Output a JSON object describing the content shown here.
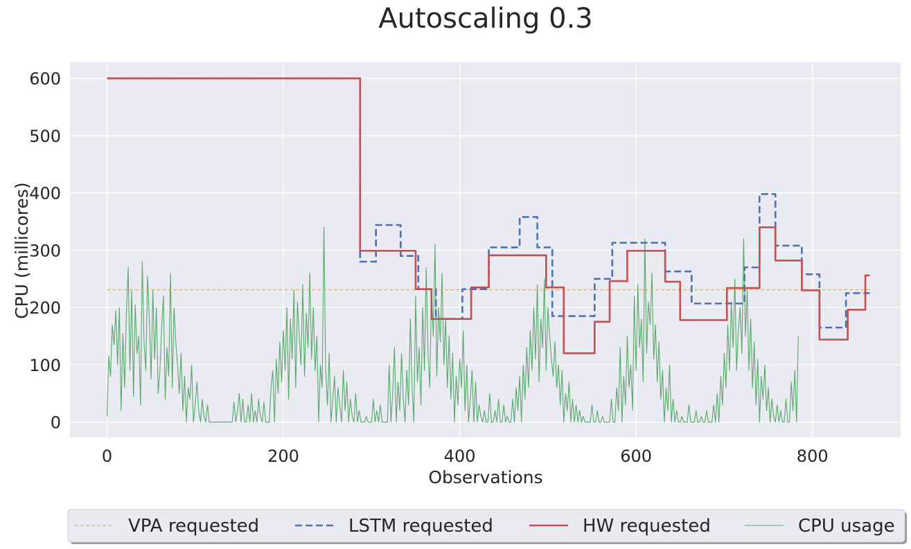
{
  "chart_data": {
    "type": "line",
    "title": "Autoscaling 0.3",
    "xlabel": "Observations",
    "ylabel": "CPU (millicores)",
    "xlim": [
      -42,
      900
    ],
    "ylim": [
      -27,
      628
    ],
    "xticks": [
      0,
      200,
      400,
      600,
      800
    ],
    "yticks": [
      0,
      100,
      200,
      300,
      400,
      500,
      600
    ],
    "grid": true,
    "background": "#eaeaf2",
    "legend_position": "bottom-center, below plot",
    "series": [
      {
        "name": "VPA requested",
        "color": "#ccb974",
        "style": "dashed-thin",
        "x": [
          0,
          865
        ],
        "y": [
          231,
          231
        ]
      },
      {
        "name": "LSTM requested",
        "color": "#4c72b0",
        "style": "dashed",
        "x": [
          0,
          287,
          287,
          305,
          305,
          333,
          333,
          353,
          353,
          373,
          373,
          403,
          403,
          433,
          433,
          468,
          468,
          488,
          488,
          505,
          505,
          553,
          553,
          573,
          573,
          633,
          633,
          663,
          663,
          723,
          723,
          740,
          740,
          758,
          758,
          788,
          788,
          808,
          808,
          838,
          838,
          865
        ],
        "y": [
          600,
          600,
          280,
          280,
          344,
          344,
          290,
          290,
          232,
          232,
          180,
          180,
          232,
          232,
          305,
          305,
          358,
          358,
          305,
          305,
          185,
          185,
          250,
          250,
          313,
          313,
          263,
          263,
          207,
          207,
          270,
          270,
          398,
          398,
          308,
          308,
          258,
          258,
          165,
          165,
          225,
          225
        ]
      },
      {
        "name": "HW requested",
        "color": "#c44e52",
        "style": "solid",
        "x": [
          0,
          287,
          287,
          350,
          350,
          368,
          368,
          413,
          413,
          433,
          433,
          498,
          498,
          518,
          518,
          553,
          553,
          570,
          570,
          590,
          590,
          633,
          633,
          650,
          650,
          703,
          703,
          740,
          740,
          758,
          758,
          788,
          788,
          808,
          808,
          840,
          840,
          860,
          860,
          865
        ],
        "y": [
          600,
          600,
          299,
          299,
          232,
          232,
          180,
          180,
          235,
          235,
          291,
          291,
          235,
          235,
          120,
          120,
          175,
          175,
          246,
          246,
          299,
          299,
          245,
          245,
          178,
          178,
          234,
          234,
          340,
          340,
          282,
          282,
          230,
          230,
          144,
          144,
          196,
          196,
          256,
          256
        ]
      },
      {
        "name": "CPU usage",
        "color": "#55a868",
        "style": "solid-thin",
        "x_start": 0,
        "x_step": 2,
        "y": [
          10,
          115,
          80,
          170,
          135,
          195,
          100,
          200,
          20,
          155,
          60,
          190,
          270,
          90,
          230,
          45,
          205,
          120,
          150,
          30,
          280,
          140,
          90,
          255,
          180,
          75,
          230,
          110,
          200,
          50,
          90,
          165,
          220,
          40,
          130,
          80,
          260,
          60,
          200,
          140,
          100,
          50,
          120,
          20,
          80,
          0,
          60,
          40,
          100,
          0,
          30,
          70,
          20,
          0,
          40,
          10,
          0,
          30,
          0,
          0,
          0,
          0,
          0,
          0,
          0,
          0,
          0,
          0,
          0,
          0,
          0,
          0,
          35,
          0,
          20,
          50,
          0,
          40,
          0,
          0,
          30,
          0,
          50,
          0,
          20,
          0,
          40,
          10,
          0,
          35,
          0,
          0,
          0,
          60,
          90,
          0,
          110,
          50,
          140,
          70,
          160,
          90,
          200,
          40,
          180,
          110,
          230,
          60,
          210,
          150,
          100,
          240,
          80,
          190,
          130,
          260,
          110,
          200,
          90,
          150,
          0,
          100,
          60,
          340,
          90,
          30,
          120,
          0,
          40,
          80,
          0,
          60,
          30,
          0,
          90,
          20,
          70,
          0,
          40,
          10,
          0,
          50,
          0,
          20,
          0,
          0,
          0,
          10,
          0,
          0,
          0,
          40,
          0,
          20,
          0,
          30,
          0,
          0,
          0,
          0,
          100,
          0,
          50,
          130,
          0,
          70,
          20,
          120,
          40,
          0,
          90,
          30,
          180,
          60,
          0,
          220,
          70,
          130,
          30,
          200,
          90,
          270,
          120,
          60,
          230,
          150,
          310,
          80,
          200,
          140,
          260,
          100,
          180,
          60,
          150,
          40,
          120,
          0,
          80,
          30,
          110,
          60,
          160,
          20,
          100,
          0,
          40,
          90,
          0,
          70,
          0,
          30,
          10,
          0,
          20,
          0,
          0,
          50,
          0,
          0,
          20,
          0,
          40,
          0,
          0,
          30,
          0,
          10,
          0,
          0,
          40,
          0,
          60,
          20,
          80,
          0,
          100,
          40,
          130,
          60,
          160,
          90,
          200,
          110,
          240,
          70,
          180,
          130,
          250,
          90,
          200,
          150,
          110,
          80,
          140,
          60,
          100,
          30,
          90,
          0,
          50,
          20,
          70,
          0,
          40,
          0,
          30,
          0,
          20,
          0,
          10,
          0,
          0,
          0,
          0,
          30,
          0,
          0,
          20,
          0,
          0,
          10,
          0,
          0,
          0,
          0,
          40,
          0,
          0,
          60,
          20,
          130,
          0,
          80,
          30,
          150,
          60,
          100,
          20,
          220,
          90,
          240,
          130,
          180,
          70,
          320,
          120,
          210,
          170,
          260,
          110,
          170,
          70,
          140,
          40,
          90,
          0,
          60,
          20,
          100,
          0,
          40,
          0,
          20,
          0,
          0,
          10,
          0,
          0,
          0,
          30,
          0,
          0,
          0,
          20,
          0,
          0,
          10,
          0,
          0,
          20,
          0,
          0,
          0,
          30,
          0,
          50,
          0,
          80,
          30,
          120,
          60,
          170,
          90,
          210,
          130,
          250,
          90,
          160,
          200,
          120,
          320,
          150,
          230,
          90,
          180,
          60,
          140,
          30,
          110,
          0,
          80,
          40,
          100,
          20,
          60,
          0,
          40,
          10,
          0,
          30,
          0,
          20,
          0,
          0,
          40,
          0,
          0,
          70,
          20,
          90,
          0,
          150
        ]
      }
    ]
  }
}
